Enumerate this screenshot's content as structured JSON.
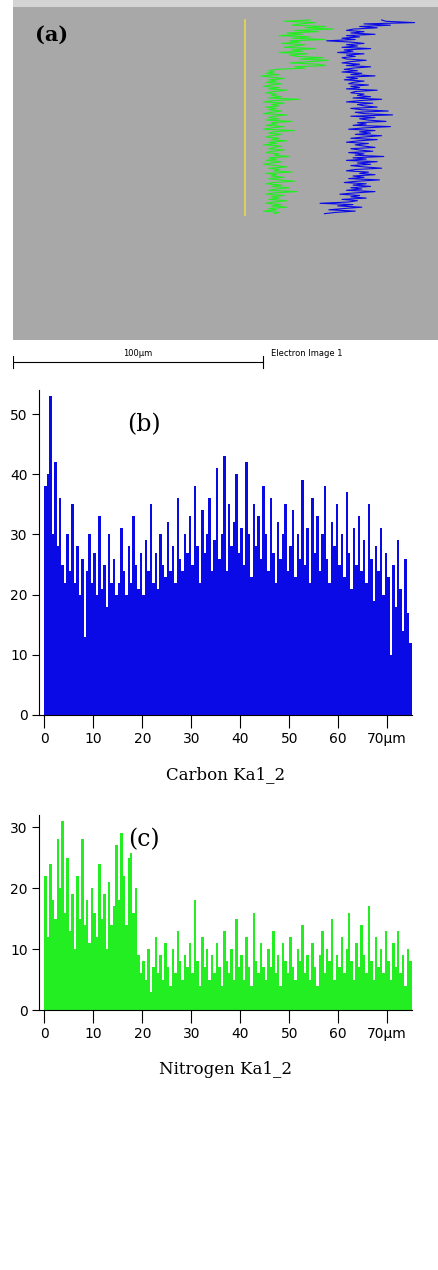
{
  "image": {
    "label": "(a)",
    "scale_bar": "100µm",
    "caption": "Electron Image 1"
  },
  "chart_data": [
    {
      "type": "bar",
      "title": "(b)",
      "x_label": "Carbon Ka1_2",
      "color": "#0a0ae6",
      "x": [
        0,
        0.5,
        1,
        1.5,
        2,
        2.5,
        3,
        3.5,
        4,
        4.5,
        5,
        5.5,
        6,
        6.5,
        7,
        7.5,
        8,
        8.5,
        9,
        9.5,
        10,
        10.5,
        11,
        11.5,
        12,
        12.5,
        13,
        13.5,
        14,
        14.5,
        15,
        15.5,
        16,
        16.5,
        17,
        17.5,
        18,
        18.5,
        19,
        19.5,
        20,
        20.5,
        21,
        21.5,
        22,
        22.5,
        23,
        23.5,
        24,
        24.5,
        25,
        25.5,
        26,
        26.5,
        27,
        27.5,
        28,
        28.5,
        29,
        29.5,
        30,
        30.5,
        31,
        31.5,
        32,
        32.5,
        33,
        33.5,
        34,
        34.5,
        35,
        35.5,
        36,
        36.5,
        37,
        37.5,
        38,
        38.5,
        39,
        39.5,
        40,
        40.5,
        41,
        41.5,
        42,
        42.5,
        43,
        43.5,
        44,
        44.5,
        45,
        45.5,
        46,
        46.5,
        47,
        47.5,
        48,
        48.5,
        49,
        49.5,
        50,
        50.5,
        51,
        51.5,
        52,
        52.5,
        53,
        53.5,
        54,
        54.5,
        55,
        55.5,
        56,
        56.5,
        57,
        57.5,
        58,
        58.5,
        59,
        59.5,
        60,
        60.5,
        61,
        61.5,
        62,
        62.5,
        63,
        63.5,
        64,
        64.5,
        65,
        65.5,
        66,
        66.5,
        67,
        67.5,
        68,
        68.5,
        69,
        69.5,
        70,
        70.5,
        71,
        71.5,
        72,
        72.5,
        73,
        73.5,
        74,
        74.5
      ],
      "values": [
        38,
        40,
        53,
        30,
        42,
        28,
        36,
        25,
        22,
        30,
        24,
        35,
        22,
        28,
        20,
        26,
        13,
        24,
        30,
        22,
        27,
        20,
        33,
        21,
        25,
        18,
        30,
        22,
        26,
        20,
        22,
        31,
        24,
        20,
        28,
        22,
        33,
        25,
        21,
        27,
        20,
        29,
        24,
        35,
        22,
        27,
        21,
        30,
        25,
        23,
        32,
        24,
        28,
        22,
        36,
        26,
        24,
        30,
        27,
        33,
        25,
        38,
        28,
        22,
        34,
        27,
        30,
        36,
        24,
        29,
        41,
        26,
        30,
        43,
        24,
        35,
        28,
        32,
        40,
        27,
        31,
        25,
        42,
        30,
        23,
        35,
        28,
        33,
        26,
        38,
        30,
        24,
        36,
        27,
        22,
        32,
        26,
        30,
        35,
        24,
        28,
        34,
        23,
        30,
        26,
        39,
        25,
        31,
        22,
        36,
        27,
        33,
        24,
        30,
        38,
        26,
        22,
        32,
        28,
        35,
        25,
        30,
        23,
        37,
        27,
        21,
        31,
        25,
        33,
        24,
        29,
        22,
        35,
        26,
        19,
        28,
        24,
        31,
        20,
        27,
        23,
        10,
        25,
        18,
        29,
        21,
        14,
        26,
        17,
        12
      ],
      "xlim": [
        -1,
        75
      ],
      "ylim": [
        0,
        54
      ],
      "xticks": [
        0,
        10,
        20,
        30,
        40,
        50,
        60,
        {
          "value": 70,
          "label": "70µm"
        }
      ],
      "yticks": [
        0,
        10,
        20,
        30,
        40,
        50
      ]
    },
    {
      "type": "bar",
      "title": "(c)",
      "x_label": "Nitrogen Ka1_2",
      "color": "#22ee22",
      "x": [
        0,
        0.5,
        1,
        1.5,
        2,
        2.5,
        3,
        3.5,
        4,
        4.5,
        5,
        5.5,
        6,
        6.5,
        7,
        7.5,
        8,
        8.5,
        9,
        9.5,
        10,
        10.5,
        11,
        11.5,
        12,
        12.5,
        13,
        13.5,
        14,
        14.5,
        15,
        15.5,
        16,
        16.5,
        17,
        17.5,
        18,
        18.5,
        19,
        19.5,
        20,
        20.5,
        21,
        21.5,
        22,
        22.5,
        23,
        23.5,
        24,
        24.5,
        25,
        25.5,
        26,
        26.5,
        27,
        27.5,
        28,
        28.5,
        29,
        29.5,
        30,
        30.5,
        31,
        31.5,
        32,
        32.5,
        33,
        33.5,
        34,
        34.5,
        35,
        35.5,
        36,
        36.5,
        37,
        37.5,
        38,
        38.5,
        39,
        39.5,
        40,
        40.5,
        41,
        41.5,
        42,
        42.5,
        43,
        43.5,
        44,
        44.5,
        45,
        45.5,
        46,
        46.5,
        47,
        47.5,
        48,
        48.5,
        49,
        49.5,
        50,
        50.5,
        51,
        51.5,
        52,
        52.5,
        53,
        53.5,
        54,
        54.5,
        55,
        55.5,
        56,
        56.5,
        57,
        57.5,
        58,
        58.5,
        59,
        59.5,
        60,
        60.5,
        61,
        61.5,
        62,
        62.5,
        63,
        63.5,
        64,
        64.5,
        65,
        65.5,
        66,
        66.5,
        67,
        67.5,
        68,
        68.5,
        69,
        69.5,
        70,
        70.5,
        71,
        71.5,
        72,
        72.5,
        73,
        73.5,
        74,
        74.5
      ],
      "values": [
        22,
        12,
        24,
        18,
        15,
        28,
        20,
        31,
        16,
        25,
        13,
        19,
        10,
        22,
        15,
        28,
        14,
        18,
        11,
        20,
        16,
        12,
        24,
        15,
        19,
        10,
        21,
        14,
        17,
        27,
        18,
        29,
        22,
        14,
        25,
        28,
        16,
        20,
        9,
        6,
        8,
        5,
        10,
        3,
        7,
        12,
        6,
        9,
        5,
        11,
        7,
        4,
        10,
        6,
        13,
        8,
        5,
        9,
        7,
        11,
        6,
        18,
        8,
        4,
        12,
        7,
        10,
        5,
        9,
        6,
        11,
        7,
        4,
        13,
        8,
        6,
        10,
        5,
        15,
        7,
        9,
        5,
        12,
        7,
        4,
        16,
        8,
        6,
        11,
        7,
        5,
        10,
        7,
        13,
        6,
        9,
        4,
        11,
        8,
        6,
        12,
        7,
        5,
        10,
        8,
        14,
        6,
        9,
        5,
        11,
        7,
        4,
        9,
        13,
        6,
        10,
        8,
        15,
        5,
        9,
        7,
        12,
        6,
        10,
        16,
        8,
        5,
        11,
        7,
        14,
        9,
        6,
        17,
        8,
        5,
        12,
        7,
        10,
        6,
        13,
        8,
        5,
        11,
        7,
        13,
        6,
        9,
        4,
        10,
        8
      ],
      "xlim": [
        -1,
        75
      ],
      "ylim": [
        0,
        32
      ],
      "xticks": [
        0,
        10,
        20,
        30,
        40,
        50,
        60,
        {
          "value": 70,
          "label": "70µm"
        }
      ],
      "yticks": [
        0,
        10,
        20,
        30
      ]
    }
  ]
}
